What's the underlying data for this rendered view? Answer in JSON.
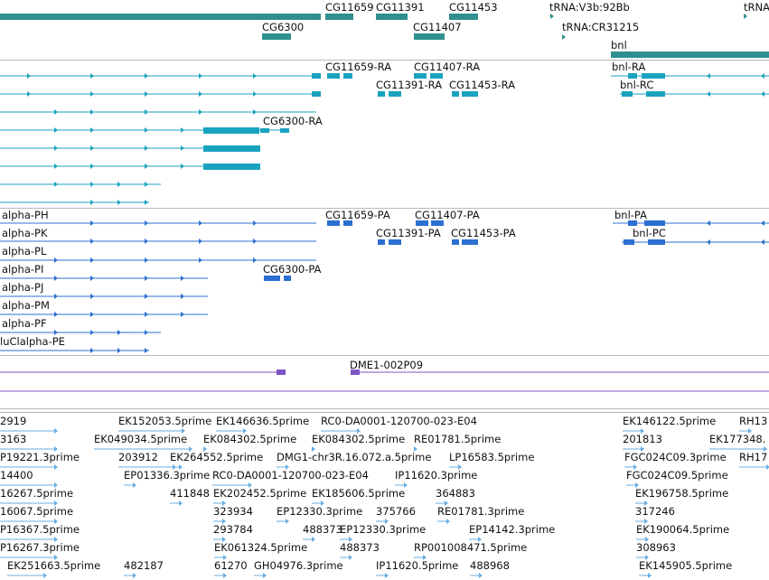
{
  "colors": {
    "gene": "#2f8f8f",
    "transcript": "#1aa3c0",
    "cds": "#2c6fd1",
    "clone": "#7d55c7",
    "est": "#6aaee0",
    "divider": "#b8b8b8",
    "text": "#111111"
  },
  "tracks": {
    "genes": {
      "labels": [
        "CG11659",
        "CG11391",
        "CG11453",
        "tRNA:V3b:92Bb",
        "tRNA",
        "CG6300",
        "CG11407",
        "tRNA:CR31215",
        "bnl"
      ]
    },
    "transcripts": {
      "labels": [
        "CG11659-RA",
        "CG11407-RA",
        "bnl-RA",
        "CG11391-RA",
        "CG11453-RA",
        "bnl-RC",
        "CG6300-RA"
      ]
    },
    "proteins": {
      "labels": [
        "alpha-PH",
        "CG11659-PA",
        "CG11407-PA",
        "bnl-PA",
        "alpha-PK",
        "CG11391-PA",
        "CG11453-PA",
        "bnl-PC",
        "alpha-PL",
        "alpha-PI",
        "CG6300-PA",
        "alpha-PJ",
        "alpha-PM",
        "alpha-PF",
        "luClalpha-PE"
      ]
    },
    "clones": {
      "labels": [
        "DME1-002P09"
      ]
    },
    "ests": {
      "labels": [
        "2919",
        "EK152053.5prime",
        "EK146636.5prime",
        "RC0-DA0001-120700-023-E04",
        "EK146122.5prime",
        "RH13",
        "3163",
        "EK049034.5prime",
        "EK084302.5prime",
        "EK084302.5prime",
        "RE01781.5prime",
        "201813",
        "EK177348.",
        "P19221.3prime",
        "203912",
        "EK264552.5prime",
        "DMG1-chr3R.16.072.a.5prime",
        "LP16583.5prime",
        "FGC024C09.3prime",
        "RH17",
        "14400",
        "EP01336.3prime",
        "RC0-DA0001-120700-023-E04",
        "IP11620.3prime",
        "FGC024C09.5prime",
        "16267.5prime",
        "411848",
        "EK202452.5prime",
        "EK185606.5prime",
        "364883",
        "EK196758.5prime",
        "16067.5prime",
        "323934",
        "EP12330.3prime",
        "375766",
        "RE01781.3prime",
        "317246",
        "P16367.5prime",
        "293784",
        "488373",
        "EP12330.3prime",
        "EP14142.3prime",
        "EK190064.5prime",
        "P16267.3prime",
        "EK061324.5prime",
        "488373",
        "RP001008471.5prime",
        "308963",
        "EK251663.5prime",
        "482187",
        "61270",
        "GH04976.3prime",
        "IP11620.5prime",
        "488968",
        "EK145905.5prime"
      ]
    }
  }
}
